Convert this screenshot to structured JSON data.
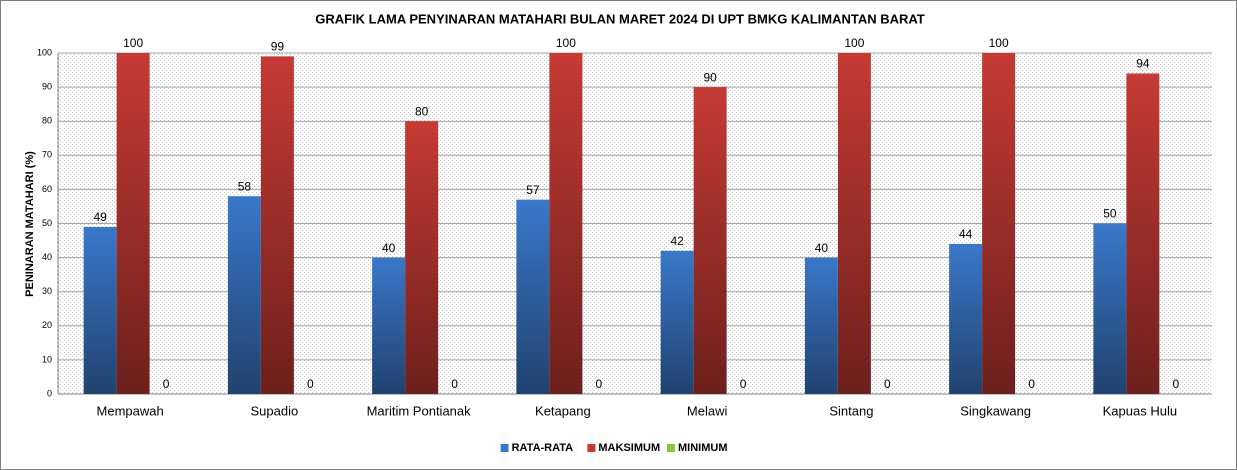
{
  "chart_data": {
    "type": "bar",
    "title": "GRAFIK LAMA PENYINARAN MATAHARI BULAN MARET 2024 DI UPT BMKG KALIMANTAN BARAT",
    "y_label": "PENINARAN MATAHARI (%)",
    "categories": [
      "Mempawah",
      "Supadio",
      "Maritim Pontianak",
      "Ketapang",
      "Melawi",
      "Sintang",
      "Singkawang",
      "Kapuas Hulu"
    ],
    "series": [
      {
        "name": "RATA-RATA",
        "color": "#3a78c9",
        "values": [
          49,
          58,
          40,
          57,
          42,
          40,
          44,
          50
        ]
      },
      {
        "name": "MAKSIMUM",
        "color": "#c63a34",
        "values": [
          100,
          99,
          80,
          100,
          90,
          100,
          100,
          94
        ]
      },
      {
        "name": "MINIMUM",
        "color": "#8cc63f",
        "values": [
          0,
          0,
          0,
          0,
          0,
          0,
          0,
          0
        ]
      }
    ],
    "ylim": [
      0,
      100
    ],
    "yticks": [
      0,
      10,
      20,
      30,
      40,
      50,
      60,
      70,
      80,
      90,
      100
    ],
    "grid": true,
    "legend": "bottom"
  }
}
